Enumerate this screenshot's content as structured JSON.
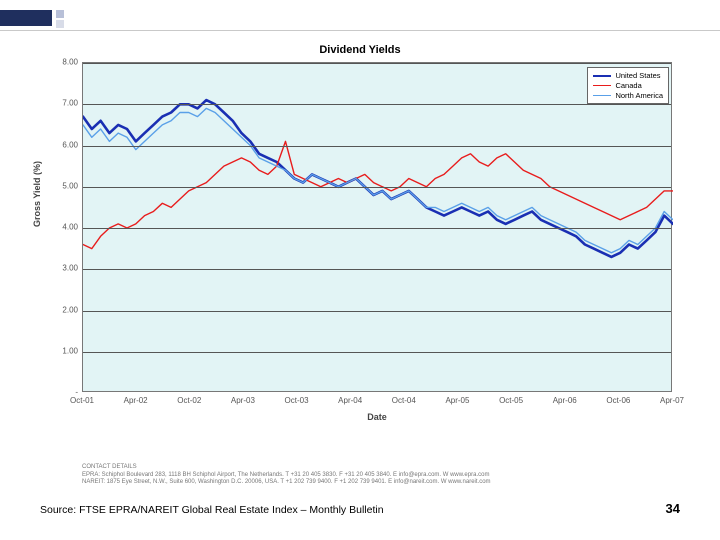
{
  "slide": {
    "page_number": "34",
    "source_line": "Source: FTSE EPRA/NAREIT Global Real Estate Index – Monthly Bulletin"
  },
  "chart": {
    "type": "line",
    "title": "Dividend Yields",
    "background_color": "#e2f4f5",
    "plot_border_color": "#777777",
    "grid_color": "#555555",
    "ylabel": "Gross Yield (%)",
    "xlabel": "Date",
    "label_fontsize": 9,
    "tick_fontsize": 8,
    "title_fontsize": 11,
    "ylim": [
      0,
      8
    ],
    "yticks": [
      "-",
      "1.00",
      "2.00",
      "3.00",
      "4.00",
      "5.00",
      "6.00",
      "7.00",
      "8.00"
    ],
    "xticks": [
      "Oct-01",
      "Apr-02",
      "Oct-02",
      "Apr-03",
      "Oct-03",
      "Apr-04",
      "Oct-04",
      "Apr-05",
      "Oct-05",
      "Apr-06",
      "Oct-06",
      "Apr-07"
    ],
    "legend": {
      "position": "top-right",
      "items": [
        {
          "label": "United States",
          "color": "#1a2fb3",
          "weight": 2.6
        },
        {
          "label": "Canada",
          "color": "#e81c1c",
          "weight": 1.4
        },
        {
          "label": "North America",
          "color": "#5aa0e8",
          "weight": 1.4
        }
      ]
    },
    "series": [
      {
        "name": "United States",
        "color": "#1a2fb3",
        "width": 2.6,
        "y": [
          6.7,
          6.4,
          6.6,
          6.3,
          6.5,
          6.4,
          6.1,
          6.3,
          6.5,
          6.7,
          6.8,
          7.0,
          7.0,
          6.9,
          7.1,
          7.0,
          6.8,
          6.6,
          6.3,
          6.1,
          5.8,
          5.7,
          5.6,
          5.4,
          5.2,
          5.1,
          5.3,
          5.2,
          5.1,
          5.0,
          5.1,
          5.2,
          5.0,
          4.8,
          4.9,
          4.7,
          4.8,
          4.9,
          4.7,
          4.5,
          4.4,
          4.3,
          4.4,
          4.5,
          4.4,
          4.3,
          4.4,
          4.2,
          4.1,
          4.2,
          4.3,
          4.4,
          4.2,
          4.1,
          4.0,
          3.9,
          3.8,
          3.6,
          3.5,
          3.4,
          3.3,
          3.4,
          3.6,
          3.5,
          3.7,
          3.9,
          4.3,
          4.1
        ]
      },
      {
        "name": "Canada",
        "color": "#e81c1c",
        "width": 1.4,
        "y": [
          3.6,
          3.5,
          3.8,
          4.0,
          4.1,
          4.0,
          4.1,
          4.3,
          4.4,
          4.6,
          4.5,
          4.7,
          4.9,
          5.0,
          5.1,
          5.3,
          5.5,
          5.6,
          5.7,
          5.6,
          5.4,
          5.3,
          5.5,
          6.1,
          5.3,
          5.2,
          5.1,
          5.0,
          5.1,
          5.2,
          5.1,
          5.2,
          5.3,
          5.1,
          5.0,
          4.9,
          5.0,
          5.2,
          5.1,
          5.0,
          5.2,
          5.3,
          5.5,
          5.7,
          5.8,
          5.6,
          5.5,
          5.7,
          5.8,
          5.6,
          5.4,
          5.3,
          5.2,
          5.0,
          4.9,
          4.8,
          4.7,
          4.6,
          4.5,
          4.4,
          4.3,
          4.2,
          4.3,
          4.4,
          4.5,
          4.7,
          4.9,
          4.9
        ]
      },
      {
        "name": "North America",
        "color": "#5aa0e8",
        "width": 1.4,
        "y": [
          6.5,
          6.2,
          6.4,
          6.1,
          6.3,
          6.2,
          5.9,
          6.1,
          6.3,
          6.5,
          6.6,
          6.8,
          6.8,
          6.7,
          6.9,
          6.8,
          6.6,
          6.4,
          6.2,
          6.0,
          5.7,
          5.6,
          5.5,
          5.4,
          5.2,
          5.1,
          5.3,
          5.2,
          5.1,
          5.0,
          5.1,
          5.2,
          5.0,
          4.8,
          4.9,
          4.7,
          4.8,
          4.9,
          4.7,
          4.5,
          4.5,
          4.4,
          4.5,
          4.6,
          4.5,
          4.4,
          4.5,
          4.3,
          4.2,
          4.3,
          4.4,
          4.5,
          4.3,
          4.2,
          4.1,
          4.0,
          3.9,
          3.7,
          3.6,
          3.5,
          3.4,
          3.5,
          3.7,
          3.6,
          3.8,
          4.0,
          4.4,
          4.2
        ]
      }
    ]
  },
  "contact": {
    "heading": "CONTACT DETAILS",
    "line1": "EPRA: Schiphol Boulevard 283, 1118 BH Schiphol Airport, The Netherlands. T +31 20 405 3830. F +31 20 405 3840. E info@epra.com. W www.epra.com",
    "line2": "NAREIT: 1875 Eye Street, N.W., Suite 600, Washington D.C. 20006, USA. T +1 202 739 9400. F +1 202 739 9401. E info@nareit.com. W www.nareit.com"
  }
}
